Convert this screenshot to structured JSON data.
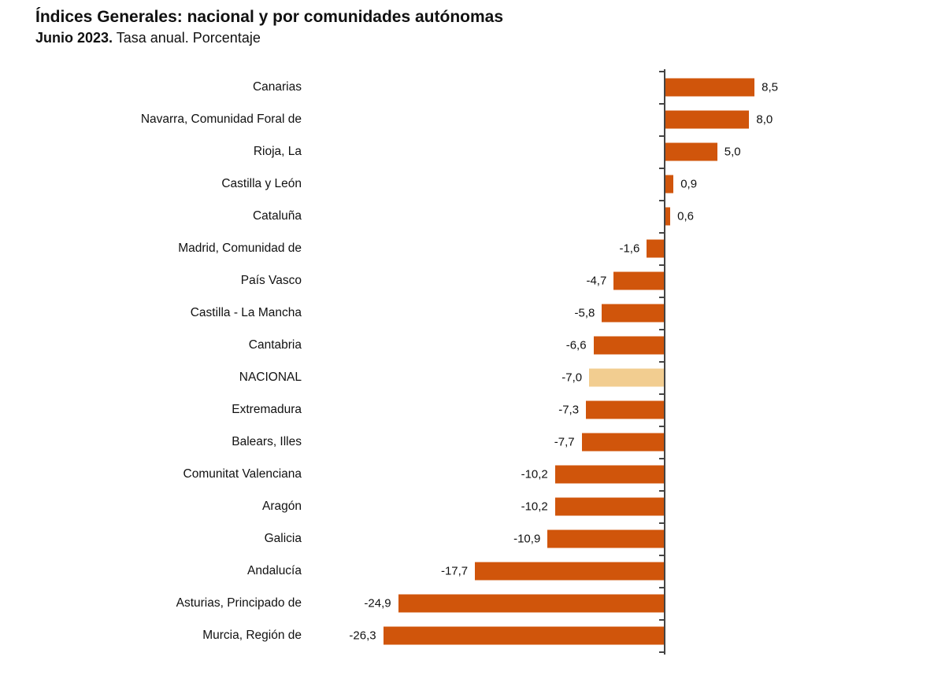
{
  "title": "Índices Generales: nacional y por comunidades autónomas",
  "subtitle_bold": "Junio 2023.",
  "subtitle_rest": " Tasa anual. Porcentaje",
  "chart_data": {
    "type": "bar",
    "orientation": "horizontal",
    "title": "Índices Generales: nacional y por comunidades autónomas",
    "subtitle": "Junio 2023. Tasa anual. Porcentaje",
    "unit": "percent (tasa anual)",
    "categories": [
      "Canarias",
      "Navarra, Comunidad Foral de",
      "Rioja, La",
      "Castilla y León",
      "Cataluña",
      "Madrid, Comunidad de",
      "País Vasco",
      "Castilla - La Mancha",
      "Cantabria",
      "NACIONAL",
      "Extremadura",
      "Balears, Illes",
      "Comunitat Valenciana",
      "Aragón",
      "Galicia",
      "Andalucía",
      "Asturias, Principado de",
      "Murcia, Región de"
    ],
    "values": [
      8.5,
      8.0,
      5.0,
      0.9,
      0.6,
      -1.6,
      -4.7,
      -5.8,
      -6.6,
      -7.0,
      -7.3,
      -7.7,
      -10.2,
      -10.2,
      -10.9,
      -17.7,
      -24.9,
      -26.3
    ],
    "value_labels": [
      "8,5",
      "8,0",
      "5,0",
      "0,9",
      "0,6",
      "-1,6",
      "-4,7",
      "-5,8",
      "-6,6",
      "-7,0",
      "-7,3",
      "-7,7",
      "-10,2",
      "-10,2",
      "-10,9",
      "-17,7",
      "-24,9",
      "-26,3"
    ],
    "highlight_category": "NACIONAL",
    "bar_color": "#d0550b",
    "highlight_color": "#f2cd90",
    "xlim": [
      -33,
      10.5
    ],
    "grid": false,
    "legend": false
  }
}
